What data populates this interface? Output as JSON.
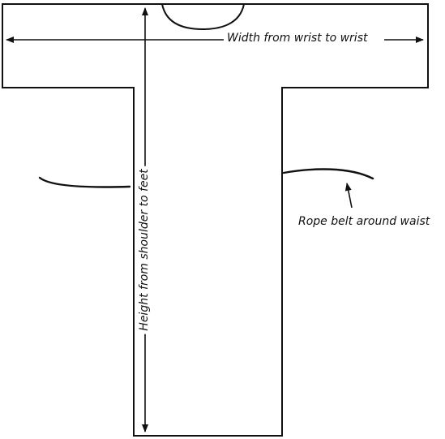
{
  "labels": {
    "width": "Width from wrist to wrist",
    "height": "Height from shoulder to feet",
    "rope_belt": "Rope belt around waist"
  },
  "colors": {
    "stroke": "#111111",
    "background": "#ffffff"
  }
}
